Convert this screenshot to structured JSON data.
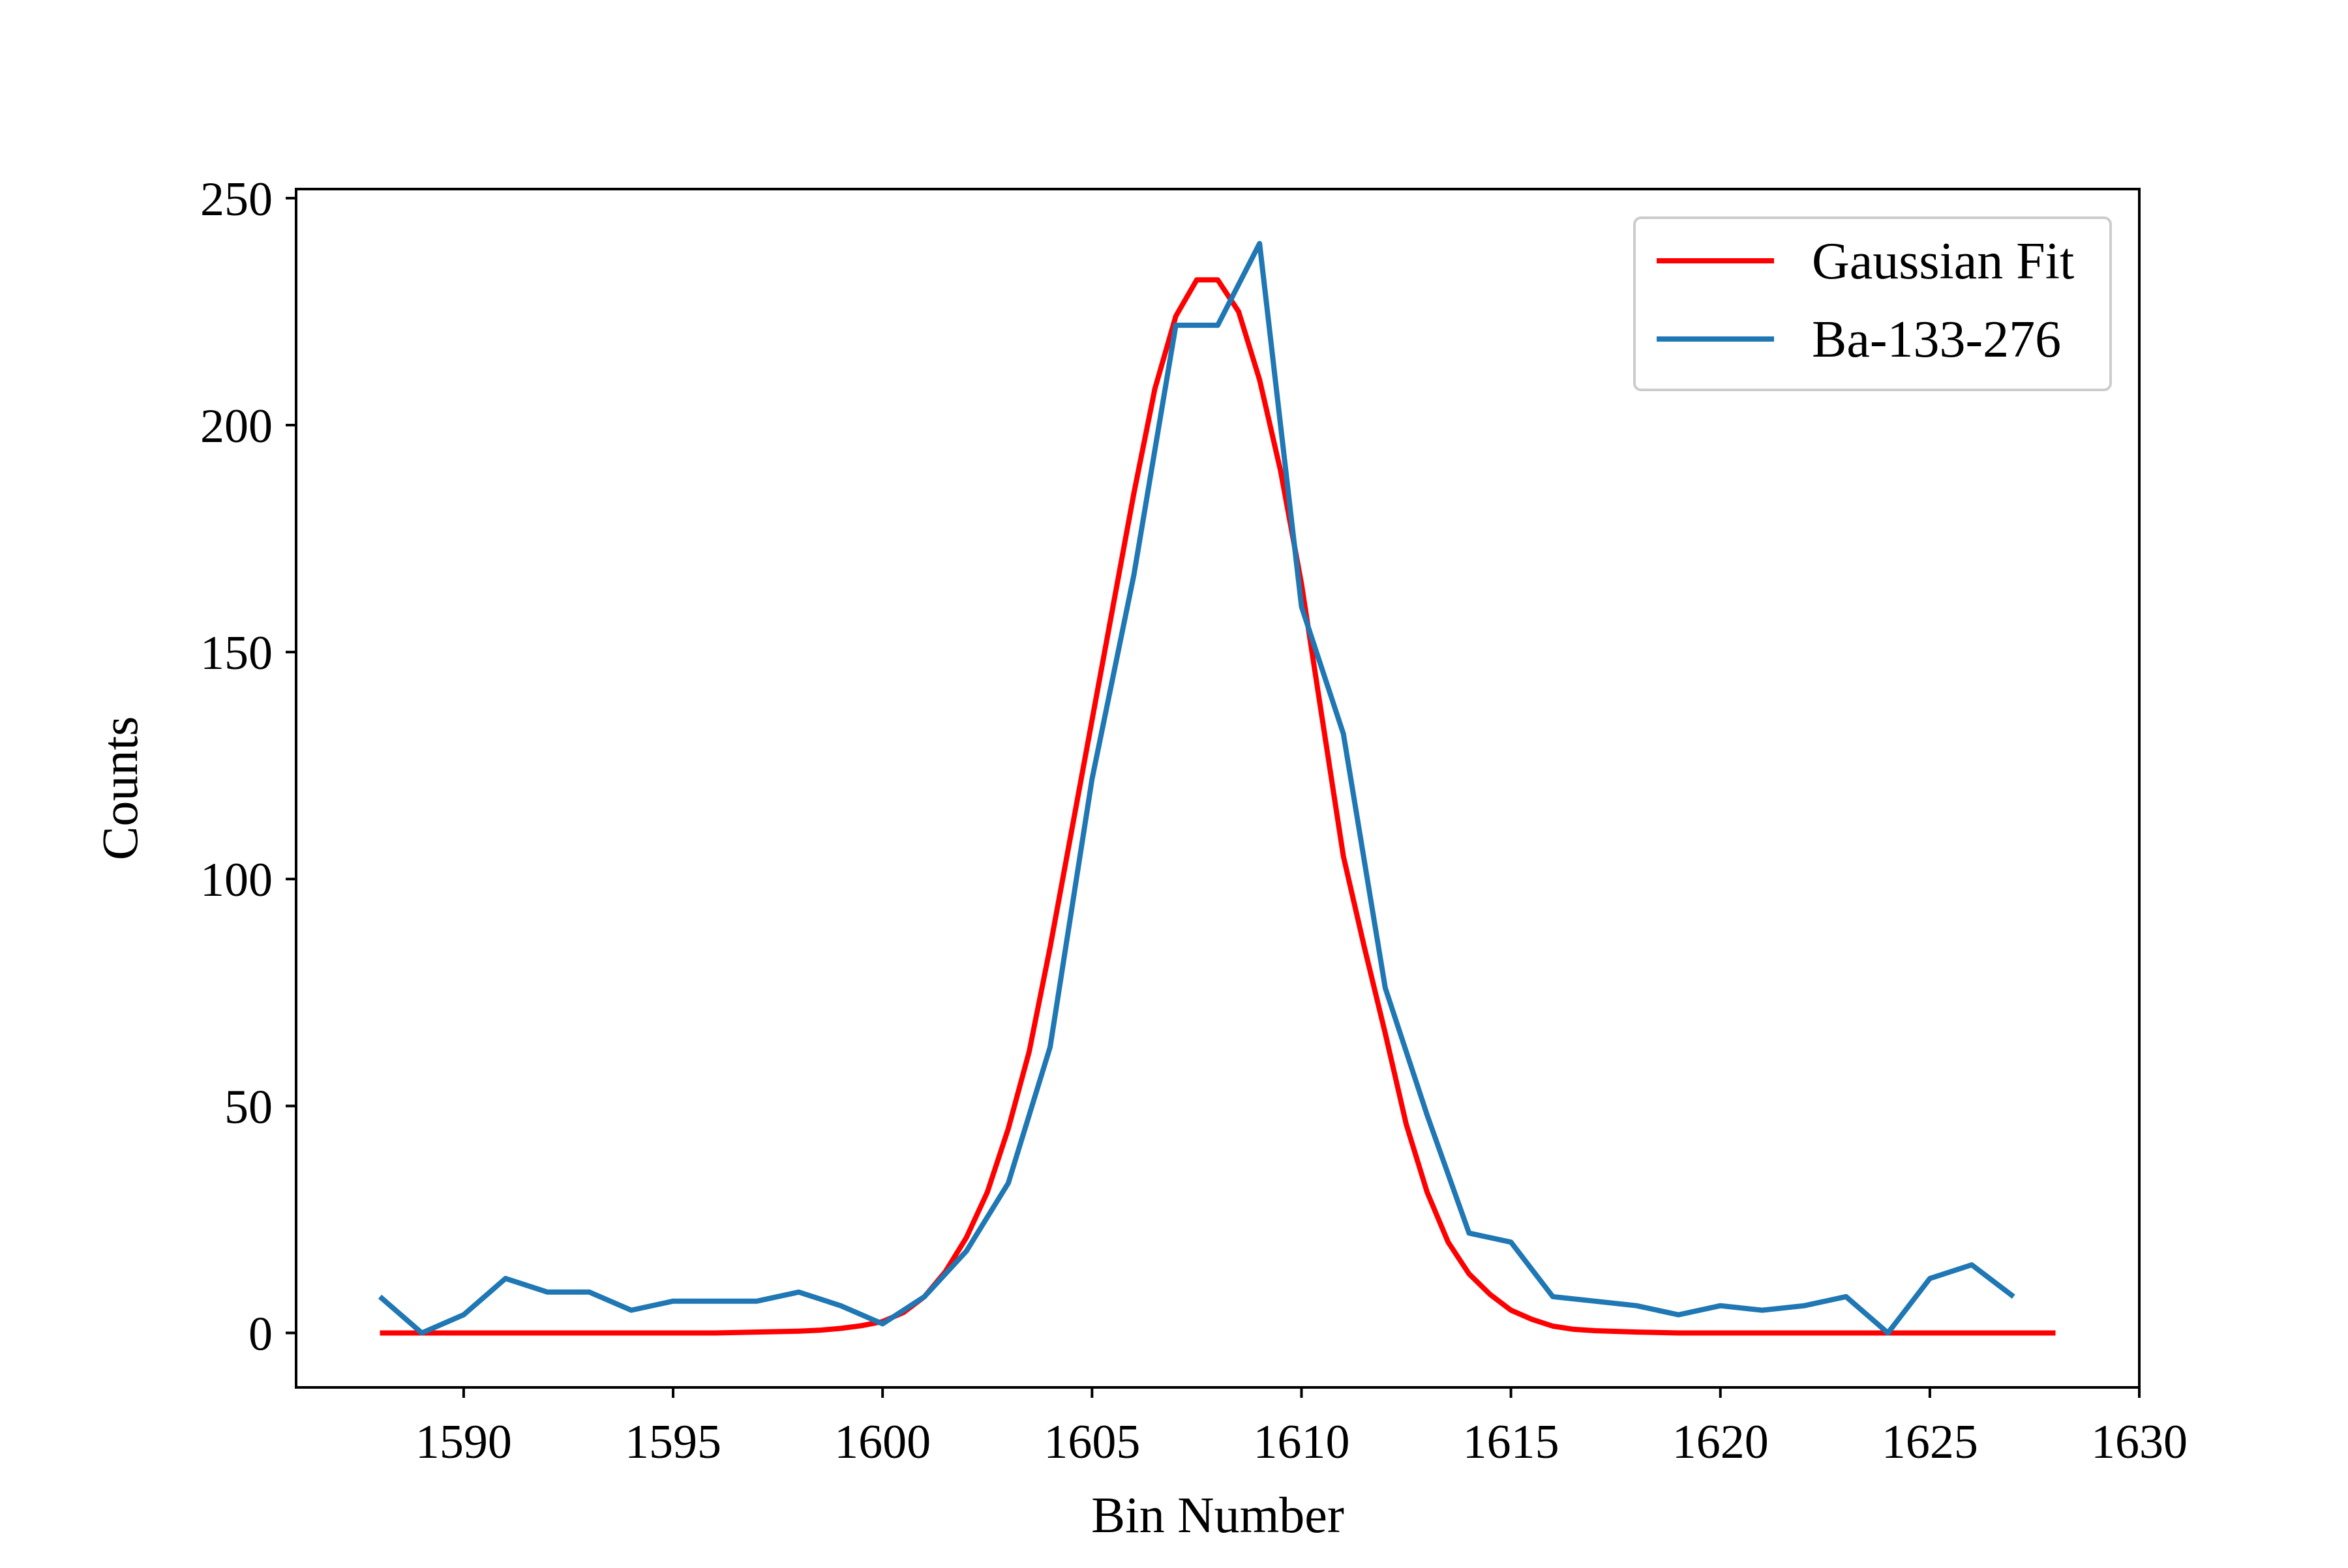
{
  "chart_data": {
    "type": "line",
    "title": "",
    "xlabel": "Bin Number",
    "ylabel": "Counts",
    "xlim": [
      1586,
      1630
    ],
    "ylim": [
      -12,
      252
    ],
    "xticks": [
      1590,
      1595,
      1600,
      1605,
      1610,
      1615,
      1620,
      1625,
      1630
    ],
    "yticks": [
      0,
      50,
      100,
      150,
      200,
      250
    ],
    "legend_position": "top-right",
    "grid": false,
    "series": [
      {
        "name": "Gaussian Fit",
        "color": "#ff0000",
        "style": "smooth",
        "x": [
          1588,
          1589,
          1590,
          1591,
          1592,
          1593,
          1594,
          1595,
          1596,
          1597,
          1598,
          1598.5,
          1599,
          1599.5,
          1600,
          1600.5,
          1601,
          1601.5,
          1602,
          1602.5,
          1603,
          1603.5,
          1604,
          1604.5,
          1605,
          1605.5,
          1606,
          1606.5,
          1607,
          1607.5,
          1608,
          1608.5,
          1609,
          1609.5,
          1610,
          1610.5,
          1611,
          1611.5,
          1612,
          1612.5,
          1613,
          1613.5,
          1614,
          1614.5,
          1615,
          1615.5,
          1616,
          1616.5,
          1617,
          1618,
          1619,
          1620,
          1621,
          1622,
          1623,
          1624,
          1625,
          1626,
          1627,
          1628
        ],
        "y": [
          0,
          0,
          0,
          0,
          0,
          0,
          0,
          0,
          0,
          0.2,
          0.4,
          0.6,
          1,
          1.6,
          2.5,
          4.5,
          8,
          13.5,
          21,
          31,
          45,
          62,
          85,
          110,
          135,
          160,
          185,
          208,
          224,
          232,
          232,
          225,
          210,
          190,
          165,
          135,
          105,
          85,
          66,
          46,
          31,
          20,
          13,
          8.5,
          5,
          3,
          1.5,
          0.8,
          0.5,
          0.2,
          0,
          0,
          0,
          0,
          0,
          0,
          0,
          0,
          0,
          0
        ]
      },
      {
        "name": "Ba-133-276",
        "color": "#1f77b4",
        "style": "linear",
        "x": [
          1588,
          1589,
          1590,
          1591,
          1592,
          1593,
          1594,
          1595,
          1596,
          1597,
          1598,
          1599,
          1600,
          1601,
          1602,
          1603,
          1604,
          1605,
          1606,
          1607,
          1608,
          1609,
          1610,
          1611,
          1612,
          1613,
          1614,
          1615,
          1616,
          1617,
          1618,
          1619,
          1620,
          1621,
          1622,
          1623,
          1624,
          1625,
          1626,
          1627
        ],
        "y": [
          8,
          0,
          4,
          12,
          9,
          9,
          5,
          7,
          7,
          7,
          9,
          6,
          2,
          8,
          18,
          33,
          63,
          122,
          167,
          222,
          222,
          240,
          160,
          132,
          76,
          48,
          22,
          20,
          8,
          7,
          6,
          4,
          6,
          5,
          6,
          8,
          0,
          12,
          15,
          8
        ]
      }
    ]
  }
}
